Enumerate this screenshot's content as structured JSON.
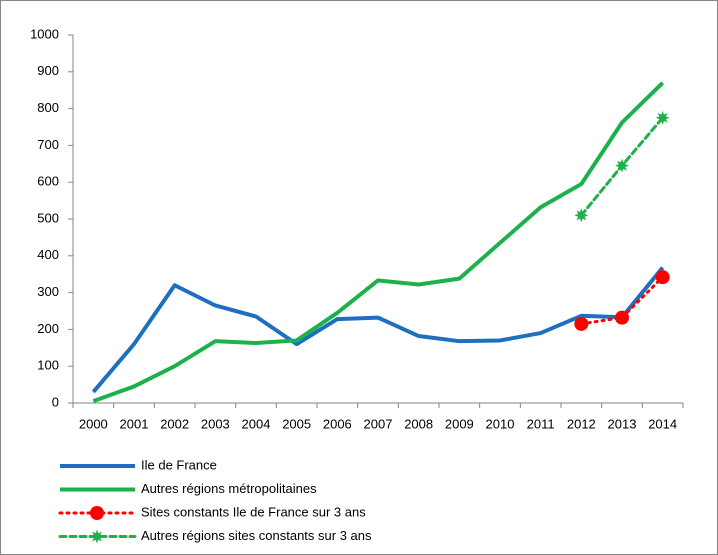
{
  "chart_data": {
    "type": "line",
    "categories": [
      "2000",
      "2001",
      "2002",
      "2003",
      "2004",
      "2005",
      "2006",
      "2007",
      "2008",
      "2009",
      "2010",
      "2011",
      "2012",
      "2013",
      "2014"
    ],
    "series": [
      {
        "name": "Ile de France",
        "color": "#1f6fc0",
        "dash": "solid",
        "marker": "none",
        "values": [
          30,
          160,
          320,
          265,
          235,
          160,
          228,
          232,
          182,
          168,
          170,
          190,
          237,
          233,
          368
        ]
      },
      {
        "name": "Autres régions métropolitaines",
        "color": "#1db14b",
        "dash": "solid",
        "marker": "none",
        "values": [
          5,
          45,
          100,
          168,
          163,
          170,
          245,
          333,
          322,
          338,
          435,
          532,
          595,
          762,
          870
        ]
      },
      {
        "name": "Sites constants Ile de France sur 3 ans",
        "color": "#ff0000",
        "dash": "dotted",
        "marker": "circle",
        "values": [
          null,
          null,
          null,
          null,
          null,
          null,
          null,
          null,
          null,
          null,
          null,
          null,
          215,
          232,
          342
        ]
      },
      {
        "name": "Autres régions sites constants sur 3 ans",
        "color": "#1db14b",
        "dash": "dashed",
        "marker": "star",
        "values": [
          null,
          null,
          null,
          null,
          null,
          null,
          null,
          null,
          null,
          null,
          null,
          null,
          510,
          645,
          775
        ]
      }
    ],
    "ylim": [
      0,
      1000
    ],
    "yticks": [
      0,
      100,
      200,
      300,
      400,
      500,
      600,
      700,
      800,
      900,
      1000
    ],
    "grid": false
  }
}
